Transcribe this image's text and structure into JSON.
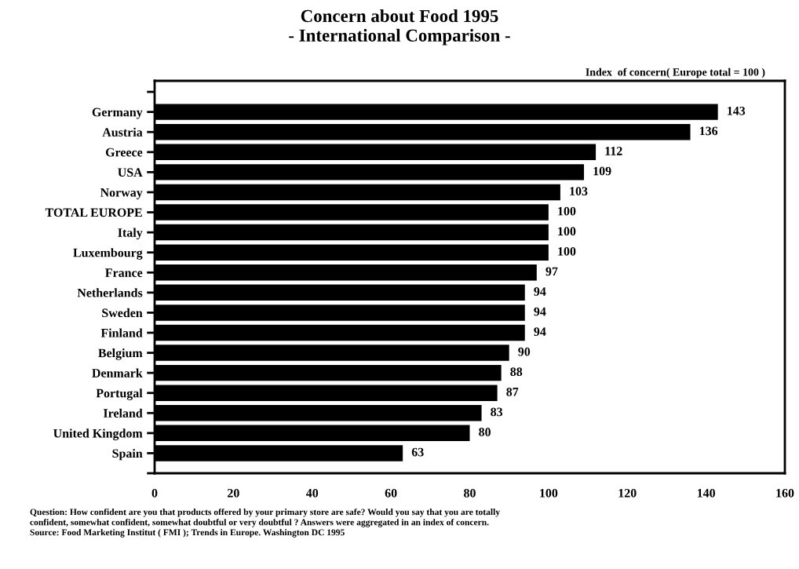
{
  "chart_data": {
    "type": "bar",
    "orientation": "horizontal",
    "title": "Concern about Food 1995\n- International Comparison -",
    "subtitle": "Index  of concern( Europe total = 100 )",
    "categories": [
      "Germany",
      "Austria",
      "Greece",
      "USA",
      "Norway",
      "TOTAL EUROPE",
      "Italy",
      "Luxembourg",
      "France",
      "Netherlands",
      "Sweden",
      "Finland",
      "Belgium",
      "Denmark",
      "Portugal",
      "Ireland",
      "United Kingdom",
      "Spain"
    ],
    "values": [
      143,
      136,
      112,
      109,
      103,
      100,
      100,
      100,
      97,
      94,
      94,
      94,
      90,
      88,
      87,
      83,
      80,
      63
    ],
    "color": "#000000",
    "data_labels": true,
    "grid": false,
    "legend": false,
    "xlim": [
      0,
      160
    ],
    "xticks": [
      0,
      20,
      40,
      60,
      80,
      100,
      120,
      140,
      160
    ],
    "annotations": [
      "Question: How confident are you that products offered by your primary store are safe? Would you say that you are totally\nconfident, somewhat confident, somewhat doubtful or very doubtful ? Answers were aggregated in an index of concern.\nSource: Food Marketing Institut ( FMI ); Trends in Europe. Washington DC 1995"
    ]
  }
}
